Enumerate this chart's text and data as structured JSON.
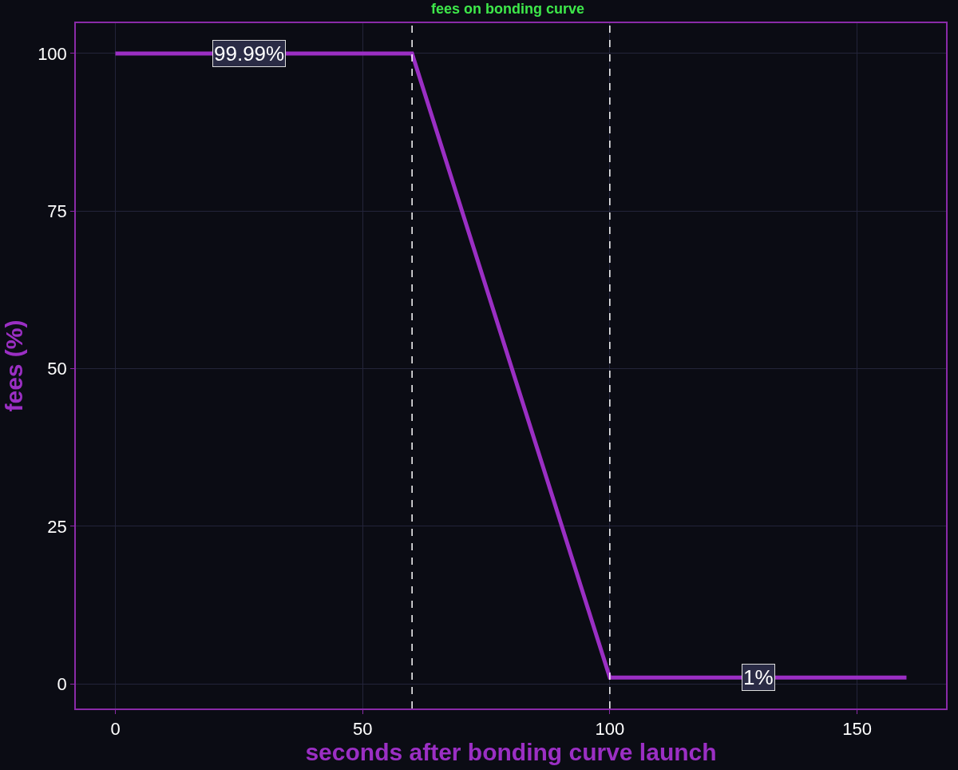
{
  "chart_data": {
    "type": "line",
    "title": "fees on bonding curve",
    "xlabel": "seconds after bonding curve launch",
    "ylabel": "fees (%)",
    "x": [
      0,
      60,
      100,
      160
    ],
    "series": [
      {
        "color": "#9b2fc4",
        "values": [
          99.99,
          99.99,
          1,
          1
        ]
      }
    ],
    "annotations": [
      {
        "text": "99.99%",
        "x": 27,
        "y": 99.99
      },
      {
        "text": "1%",
        "x": 130,
        "y": 1
      }
    ],
    "ref_lines": [
      {
        "axis": "x",
        "value": 60,
        "color": "#ffffff",
        "line_style": "dashed"
      },
      {
        "axis": "x",
        "value": 100,
        "color": "#ffffff",
        "line_style": "dashed"
      }
    ],
    "xlim": [
      -8,
      168
    ],
    "xticks": [
      0,
      50,
      100,
      150
    ],
    "ylim": [
      -3.9,
      104.8
    ],
    "yticks": [
      0,
      25,
      50,
      75,
      100
    ],
    "grid": true,
    "marker": "none",
    "line_style": "solid"
  }
}
